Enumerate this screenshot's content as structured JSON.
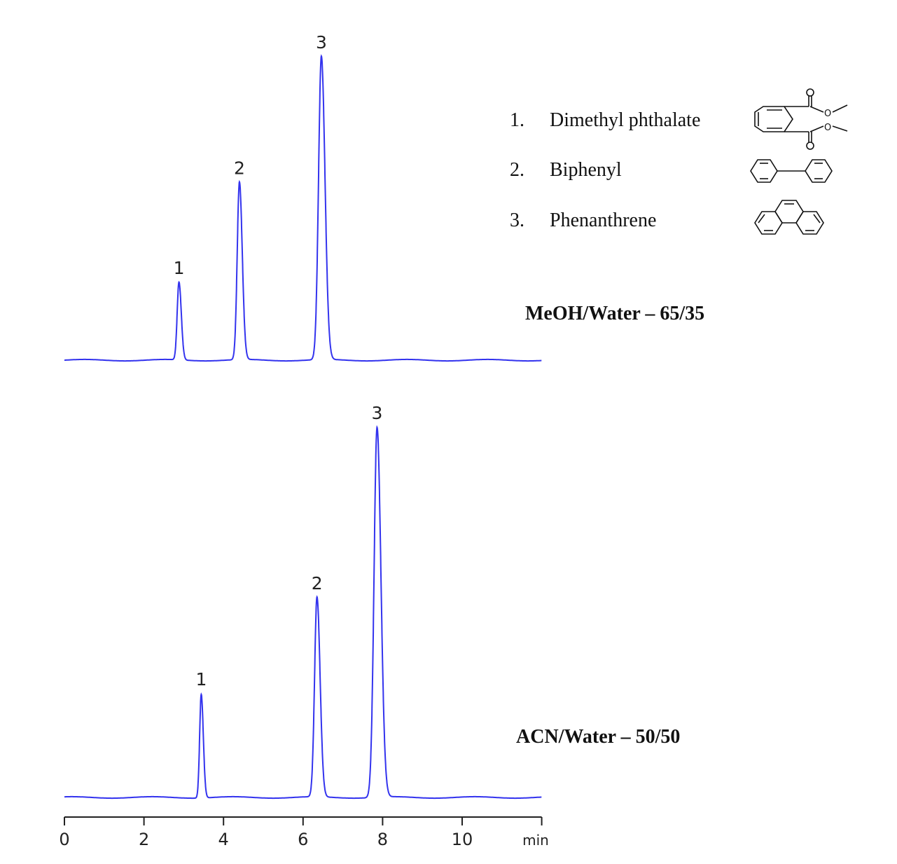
{
  "chart_data": [
    {
      "type": "line",
      "title": "",
      "condition_label": "MeOH/Water – 65/35",
      "xlabel": "min",
      "xlim": [
        0,
        12
      ],
      "x_ticks": [
        0,
        2,
        4,
        6,
        8,
        10
      ],
      "y_axis_shown": false,
      "y_units": "relative intensity (tallest peak overall = 1)",
      "color": "#3333ee",
      "peaks": [
        {
          "label": "1",
          "retention_time": 2.88,
          "height": 0.21,
          "width": 0.045
        },
        {
          "label": "2",
          "retention_time": 4.4,
          "height": 0.48,
          "width": 0.055
        },
        {
          "label": "3",
          "retention_time": 6.46,
          "height": 0.82,
          "width": 0.07
        }
      ]
    },
    {
      "type": "line",
      "title": "",
      "condition_label": "ACN/Water – 50/50",
      "xlabel": "min",
      "xlim": [
        0,
        12
      ],
      "x_ticks": [
        0,
        2,
        4,
        6,
        8,
        10
      ],
      "y_axis_shown": false,
      "y_units": "relative intensity (tallest peak overall = 1)",
      "color": "#3333ee",
      "peaks": [
        {
          "label": "1",
          "retention_time": 3.44,
          "height": 0.28,
          "width": 0.04
        },
        {
          "label": "2",
          "retention_time": 6.35,
          "height": 0.54,
          "width": 0.06
        },
        {
          "label": "3",
          "retention_time": 7.86,
          "height": 1.0,
          "width": 0.075
        }
      ]
    }
  ],
  "legend": [
    {
      "number": "1.",
      "name": "Dimethyl phthalate",
      "structure": "dimethyl-phthalate-structure"
    },
    {
      "number": "2.",
      "name": "Biphenyl",
      "structure": "biphenyl-structure"
    },
    {
      "number": "3.",
      "name": "Phenanthrene",
      "structure": "phenanthrene-structure"
    }
  ],
  "axis": {
    "tick_labels": [
      "0",
      "2",
      "4",
      "6",
      "8",
      "10"
    ],
    "unit": "min"
  },
  "structure_atom_label": "O"
}
